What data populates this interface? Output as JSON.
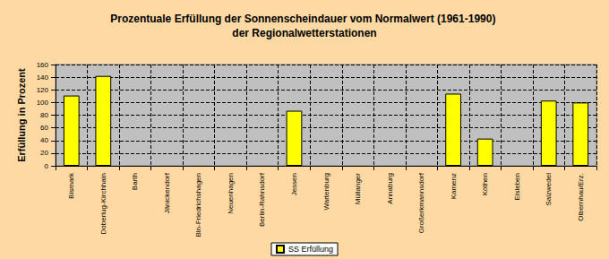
{
  "chart_data": {
    "type": "bar",
    "title": "Prozentuale Erfüllung der Sonnenscheindauer vom Normalwert (1961-1990) der Regionalwetterstationen",
    "y_label": "Erfüllung in Prozent",
    "categories": [
      "Bismark",
      "Doberlug-Kirchhain",
      "Barth",
      "Jänickendorf",
      "Bln-Friedrichshagen",
      "Neuenhagen",
      "Berlin-Rahnsdorf",
      "Jessen",
      "Wartenburg",
      "Müllanger",
      "Annaburg",
      "Großerkmannsdorf",
      "Kamenz",
      "Köthen",
      "Eisleben",
      "Salzwedel",
      "Olbernhau/Erz."
    ],
    "series": [
      {
        "name": "SS Erfüllung",
        "color": "#ffff00",
        "values": [
          111,
          142,
          null,
          null,
          null,
          null,
          null,
          87,
          null,
          null,
          null,
          null,
          114,
          43,
          null,
          103,
          100
        ]
      }
    ],
    "ylim": [
      0,
      160
    ],
    "yticks": [
      0,
      20,
      40,
      60,
      80,
      100,
      120,
      140,
      160
    ],
    "grid": true,
    "legend": "bottom"
  }
}
